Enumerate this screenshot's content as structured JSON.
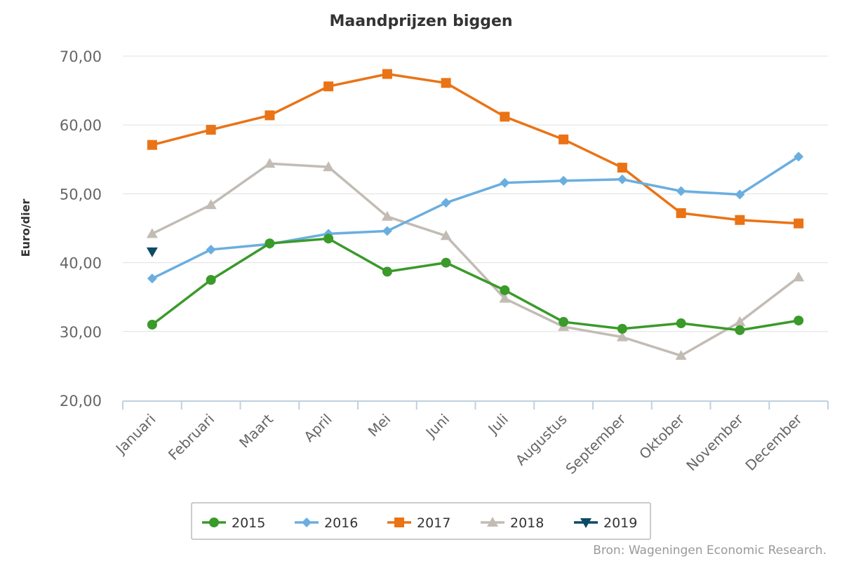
{
  "chart_data": {
    "type": "line",
    "title": "Maandprijzen biggen",
    "ylabel": "Euro/dier",
    "xlabel": "",
    "ylim": [
      20,
      70
    ],
    "yticks": [
      20,
      30,
      40,
      50,
      60,
      70
    ],
    "ytick_labels": [
      "20,00",
      "30,00",
      "40,00",
      "50,00",
      "60,00",
      "70,00"
    ],
    "grid": true,
    "legend_position": "bottom",
    "categories": [
      "Januari",
      "Februari",
      "Maart",
      "April",
      "Mei",
      "Juni",
      "Juli",
      "Augustus",
      "September",
      "Oktober",
      "November",
      "December"
    ],
    "series": [
      {
        "name": "2015",
        "color": "#3a9a2a",
        "marker": "circle",
        "values": [
          31.0,
          37.5,
          42.8,
          43.5,
          38.7,
          40.0,
          36.0,
          31.4,
          30.4,
          31.2,
          30.2,
          31.6
        ]
      },
      {
        "name": "2016",
        "color": "#6aaee0",
        "marker": "diamond",
        "values": [
          37.7,
          41.9,
          42.7,
          44.2,
          44.6,
          48.7,
          51.6,
          51.9,
          52.1,
          50.4,
          49.9,
          55.4
        ]
      },
      {
        "name": "2017",
        "color": "#ea7315",
        "marker": "square",
        "values": [
          57.1,
          59.3,
          61.4,
          65.6,
          67.4,
          66.1,
          61.2,
          57.9,
          53.8,
          47.2,
          46.2,
          45.7
        ]
      },
      {
        "name": "2018",
        "color": "#c2bcb4",
        "marker": "triangle",
        "values": [
          44.2,
          48.4,
          54.4,
          53.9,
          46.7,
          43.9,
          34.8,
          30.7,
          29.2,
          26.5,
          31.4,
          37.9
        ]
      },
      {
        "name": "2019",
        "color": "#0d4a64",
        "marker": "triangle-down",
        "values": [
          41.6,
          null,
          null,
          null,
          null,
          null,
          null,
          null,
          null,
          null,
          null,
          null
        ]
      }
    ]
  },
  "source_note": "Bron: Wageningen Economic Research."
}
